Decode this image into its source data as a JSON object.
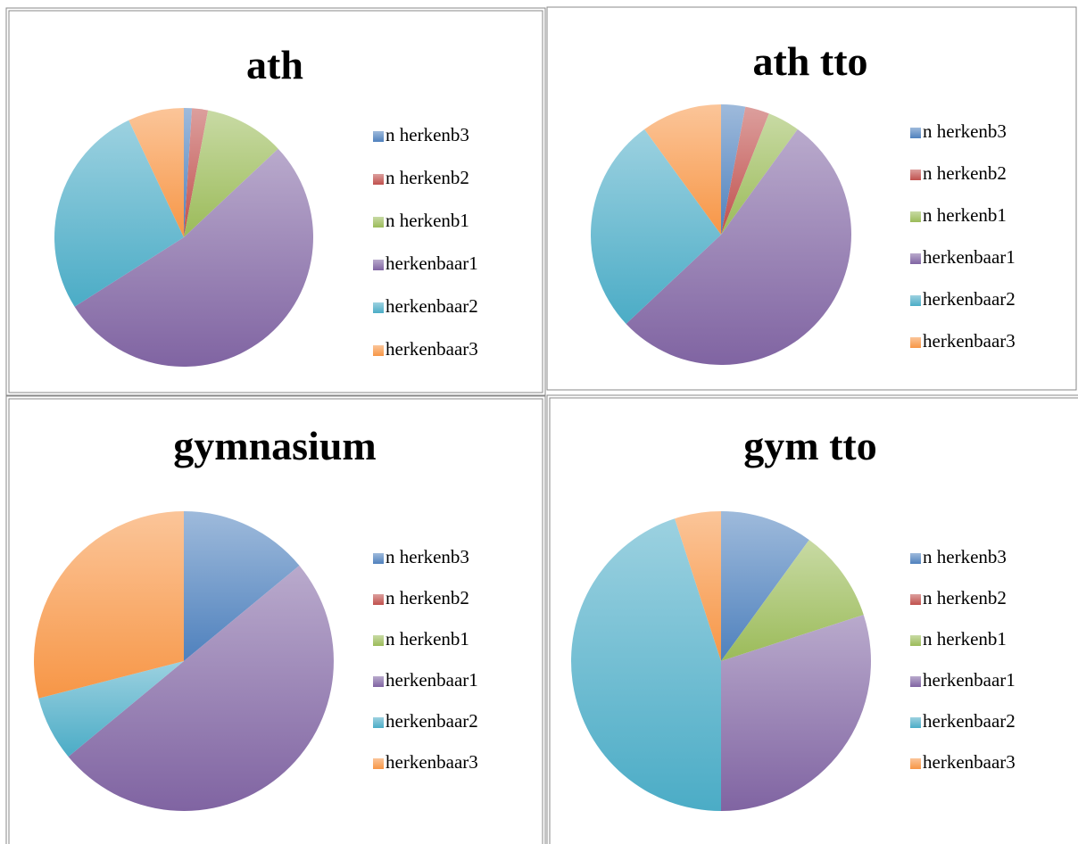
{
  "chart_data": [
    {
      "type": "pie",
      "title": "ath",
      "categories": [
        "n herkenb3",
        "n herkenb2",
        "n herkenb1",
        "herkenbaar1",
        "herkenbaar2",
        "herkenbaar3"
      ],
      "values": [
        1,
        2,
        10,
        53,
        27,
        7
      ],
      "colors": [
        "#4f81bd",
        "#c0504d",
        "#9bbb59",
        "#8064a2",
        "#4bacc6",
        "#f79646"
      ]
    },
    {
      "type": "pie",
      "title": "ath tto",
      "categories": [
        "n herkenb3",
        "n herkenb2",
        "n herkenb1",
        "herkenbaar1",
        "herkenbaar2",
        "herkenbaar3"
      ],
      "values": [
        3,
        3,
        4,
        53,
        27,
        10
      ],
      "colors": [
        "#4f81bd",
        "#c0504d",
        "#9bbb59",
        "#8064a2",
        "#4bacc6",
        "#f79646"
      ]
    },
    {
      "type": "pie",
      "title": "gymnasium",
      "categories": [
        "n herkenb3",
        "n herkenb2",
        "n herkenb1",
        "herkenbaar1",
        "herkenbaar2",
        "herkenbaar3"
      ],
      "values": [
        14,
        0,
        0,
        50,
        7,
        29
      ],
      "colors": [
        "#4f81bd",
        "#c0504d",
        "#9bbb59",
        "#8064a2",
        "#4bacc6",
        "#f79646"
      ]
    },
    {
      "type": "pie",
      "title": "gym tto",
      "categories": [
        "n herkenb3",
        "n herkenb2",
        "n herkenb1",
        "herkenbaar1",
        "herkenbaar2",
        "herkenbaar3"
      ],
      "values": [
        10,
        0,
        10,
        30,
        45,
        5
      ],
      "colors": [
        "#4f81bd",
        "#c0504d",
        "#9bbb59",
        "#8064a2",
        "#4bacc6",
        "#f79646"
      ]
    }
  ]
}
